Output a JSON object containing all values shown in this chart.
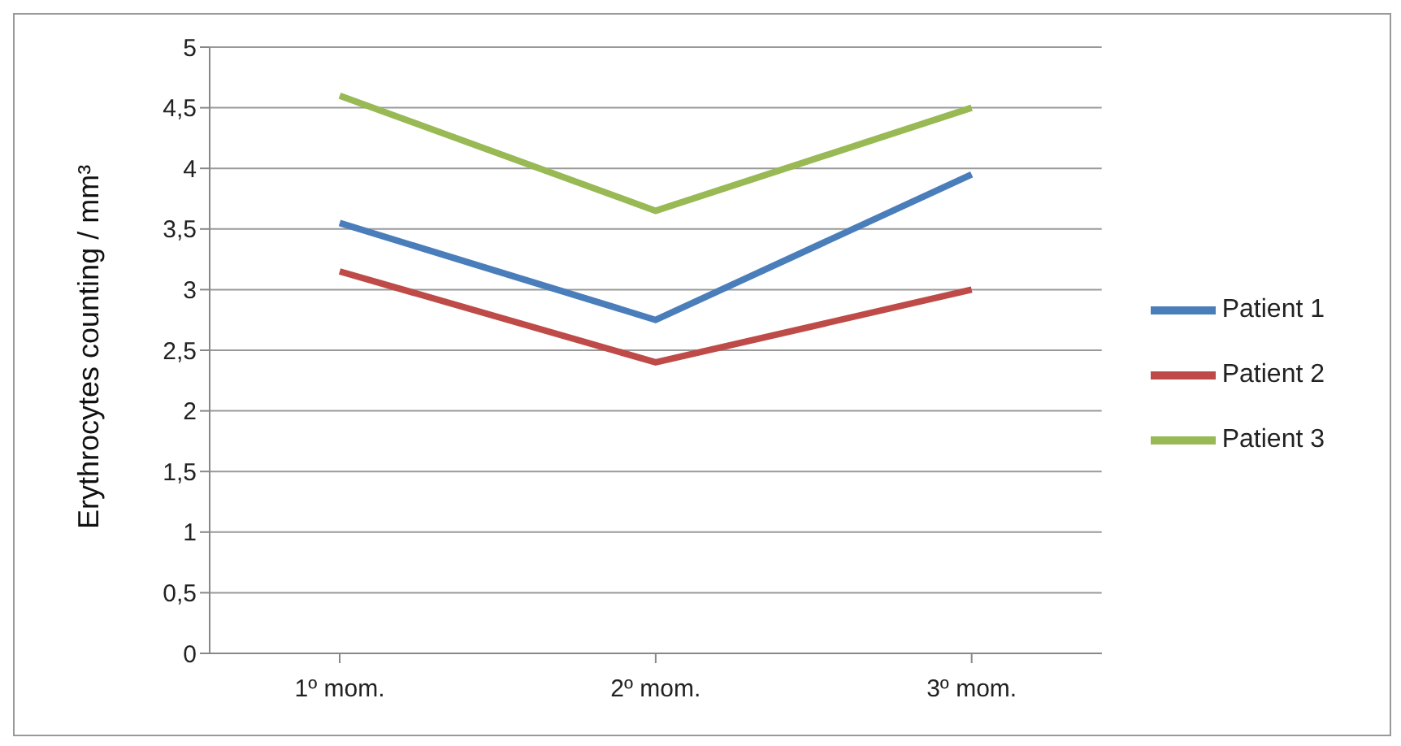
{
  "chart_data": {
    "type": "line",
    "ylabel": "Erythrocytes counting / mm³",
    "categories": [
      "1º mom.",
      "2º mom.",
      "3º mom."
    ],
    "series": [
      {
        "name": "Patient 1",
        "color": "#4a7ebb",
        "values": [
          3.55,
          2.75,
          3.95
        ]
      },
      {
        "name": "Patient 2",
        "color": "#be4b48",
        "values": [
          3.15,
          2.4,
          3.0
        ]
      },
      {
        "name": "Patient 3",
        "color": "#98b954",
        "values": [
          4.6,
          3.65,
          4.5
        ]
      }
    ],
    "ylim": [
      0,
      5
    ],
    "yticks": [
      0,
      {
        "value": 0.5,
        "label": "0,5"
      },
      1,
      {
        "value": 1.5,
        "label": "1,5"
      },
      2,
      {
        "value": 2.5,
        "label": "2,5"
      },
      3,
      {
        "value": 3.5,
        "label": "3,5"
      },
      4,
      {
        "value": 4.5,
        "label": "4,5"
      },
      5
    ],
    "grid": "y",
    "legend": "right",
    "marker": "none",
    "line_style": "solid"
  }
}
